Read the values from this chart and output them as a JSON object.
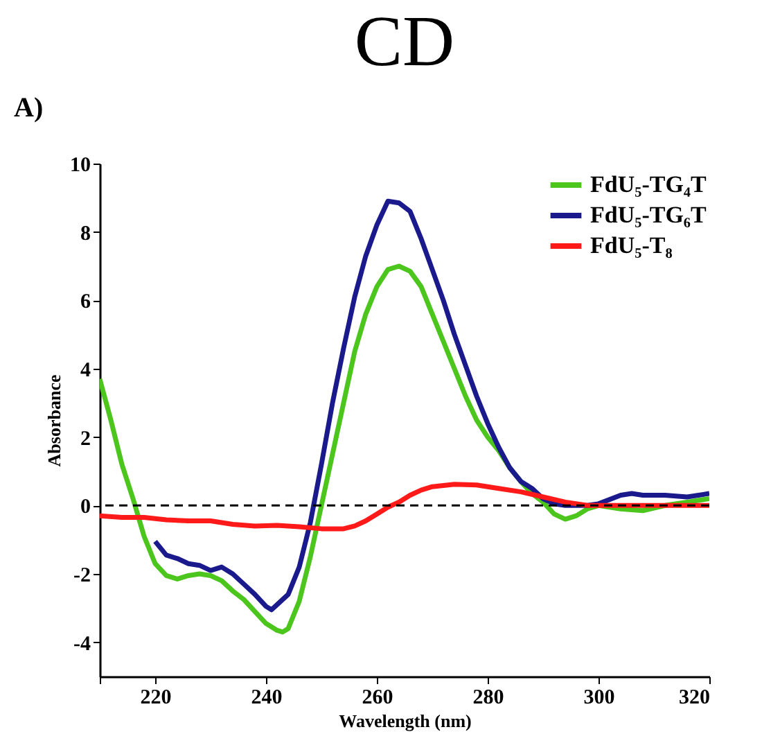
{
  "chart_data": {
    "type": "line",
    "title": "CD",
    "xlabel": "Wavelength (nm)",
    "ylabel": "Absorbance",
    "annotations": [
      "A)"
    ],
    "xlim": [
      210,
      320
    ],
    "xticks": [
      {
        "value": 210,
        "label": null
      },
      220,
      240,
      260,
      280,
      300,
      320
    ],
    "ylim": [
      -5,
      10
    ],
    "yticks": [
      -4,
      -2,
      0,
      2,
      4,
      6,
      8,
      10
    ],
    "grid": false,
    "legend": "top right",
    "marker": "none",
    "line_style": "solid",
    "ref_lines": [
      {
        "axis": "y",
        "value": 0,
        "label": null,
        "color": "#000000",
        "line_style": "dashed"
      }
    ],
    "series": [
      {
        "name": "FdU₅-TG₄T",
        "color": "#4cc51c",
        "x": [
          210,
          212,
          214,
          216,
          218,
          220,
          222,
          224,
          226,
          228,
          230,
          232,
          234,
          236,
          238,
          240,
          242,
          243,
          244,
          246,
          248,
          250,
          252,
          254,
          256,
          258,
          260,
          262,
          264,
          266,
          268,
          270,
          272,
          274,
          276,
          278,
          280,
          282,
          284,
          286,
          288,
          290,
          292,
          294,
          296,
          298,
          300,
          304,
          308,
          312,
          316,
          320
        ],
        "values": [
          3.7,
          2.5,
          1.2,
          0.2,
          -0.9,
          -1.7,
          -2.05,
          -2.15,
          -2.05,
          -2.0,
          -2.05,
          -2.2,
          -2.5,
          -2.75,
          -3.1,
          -3.45,
          -3.65,
          -3.7,
          -3.6,
          -2.8,
          -1.5,
          0,
          1.5,
          3.0,
          4.5,
          5.6,
          6.4,
          6.9,
          7.0,
          6.85,
          6.4,
          5.6,
          4.8,
          4.0,
          3.2,
          2.5,
          2.0,
          1.6,
          1.1,
          0.7,
          0.35,
          0.1,
          -0.25,
          -0.4,
          -0.3,
          -0.1,
          0,
          -0.1,
          -0.15,
          0.0,
          0.1,
          0.2
        ]
      },
      {
        "name": "FdU₅-TG₆T",
        "color": "#1a1a8c",
        "x": [
          220,
          222,
          224,
          226,
          228,
          230,
          232,
          234,
          236,
          238,
          240,
          241,
          242,
          244,
          246,
          248,
          250,
          252,
          254,
          256,
          258,
          260,
          262,
          264,
          266,
          268,
          270,
          272,
          274,
          276,
          278,
          280,
          282,
          284,
          286,
          288,
          290,
          292,
          294,
          298,
          300,
          304,
          306,
          308,
          312,
          316,
          320
        ],
        "values": [
          -1.05,
          -1.45,
          -1.55,
          -1.7,
          -1.75,
          -1.9,
          -1.8,
          -2.0,
          -2.3,
          -2.6,
          -2.95,
          -3.05,
          -2.9,
          -2.6,
          -1.8,
          -0.5,
          1.2,
          3.0,
          4.6,
          6.1,
          7.3,
          8.2,
          8.9,
          8.85,
          8.6,
          7.8,
          6.9,
          6.0,
          5.0,
          4.1,
          3.2,
          2.4,
          1.7,
          1.1,
          0.7,
          0.5,
          0.2,
          0.05,
          0,
          0,
          0.05,
          0.3,
          0.35,
          0.3,
          0.3,
          0.25,
          0.35
        ]
      },
      {
        "name": "FdU₅-T₈",
        "color": "#ff1a1a",
        "x": [
          210,
          214,
          218,
          222,
          226,
          230,
          234,
          238,
          242,
          246,
          250,
          254,
          256,
          258,
          260,
          262,
          264,
          266,
          268,
          270,
          274,
          278,
          282,
          286,
          290,
          294,
          298,
          302,
          306,
          310,
          320
        ],
        "values": [
          -0.3,
          -0.35,
          -0.35,
          -0.42,
          -0.45,
          -0.45,
          -0.55,
          -0.6,
          -0.58,
          -0.62,
          -0.68,
          -0.68,
          -0.6,
          -0.45,
          -0.25,
          -0.05,
          0.1,
          0.3,
          0.45,
          0.55,
          0.62,
          0.6,
          0.5,
          0.4,
          0.25,
          0.1,
          0,
          0,
          0,
          0,
          0
        ]
      }
    ]
  }
}
